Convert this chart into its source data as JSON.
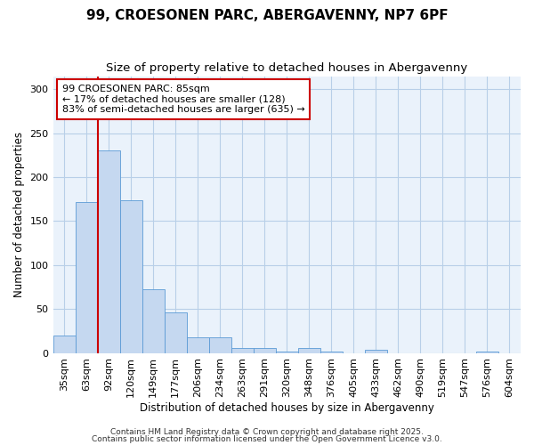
{
  "title1": "99, CROESONEN PARC, ABERGAVENNY, NP7 6PF",
  "title2": "Size of property relative to detached houses in Abergavenny",
  "xlabel": "Distribution of detached houses by size in Abergavenny",
  "ylabel": "Number of detached properties",
  "categories": [
    "35sqm",
    "63sqm",
    "92sqm",
    "120sqm",
    "149sqm",
    "177sqm",
    "206sqm",
    "234sqm",
    "263sqm",
    "291sqm",
    "320sqm",
    "348sqm",
    "376sqm",
    "405sqm",
    "433sqm",
    "462sqm",
    "490sqm",
    "519sqm",
    "547sqm",
    "576sqm",
    "604sqm"
  ],
  "values": [
    20,
    172,
    230,
    174,
    72,
    46,
    18,
    18,
    6,
    6,
    2,
    6,
    2,
    0,
    4,
    0,
    0,
    0,
    0,
    2,
    0
  ],
  "bar_color": "#c5d8f0",
  "bar_edge_color": "#5b9bd5",
  "vline_x": 1.5,
  "vline_color": "#cc0000",
  "annotation_text": "99 CROESONEN PARC: 85sqm\n← 17% of detached houses are smaller (128)\n83% of semi-detached houses are larger (635) →",
  "annotation_box_color": "white",
  "annotation_box_edge": "#cc0000",
  "footer1": "Contains HM Land Registry data © Crown copyright and database right 2025.",
  "footer2": "Contains public sector information licensed under the Open Government Licence v3.0.",
  "plot_bg_color": "#eaf2fb",
  "fig_bg_color": "#ffffff",
  "grid_color": "#b8cfe8",
  "ylim": [
    0,
    315
  ],
  "title_fontsize": 11,
  "subtitle_fontsize": 9.5,
  "axis_label_fontsize": 8.5,
  "tick_fontsize": 8,
  "footer_fontsize": 6.5,
  "annot_fontsize": 8
}
